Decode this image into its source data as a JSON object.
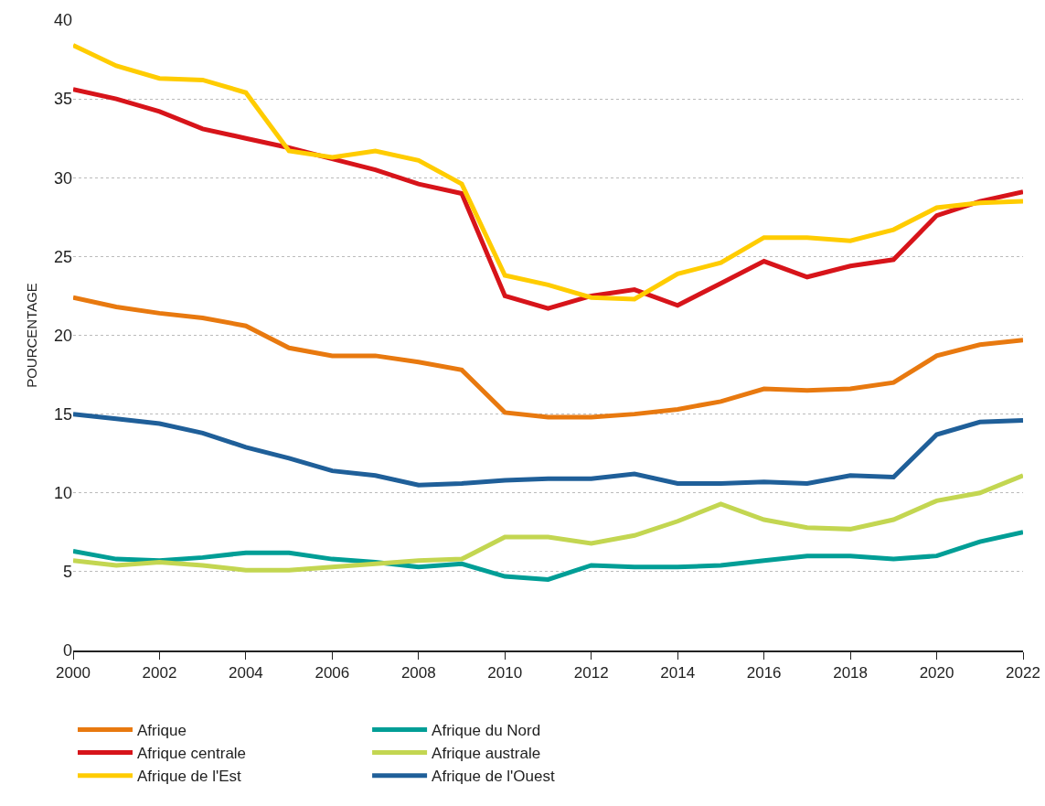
{
  "chart_data": {
    "type": "line",
    "ylabel": "POURCENTAGE",
    "x": [
      2000,
      2001,
      2002,
      2003,
      2004,
      2005,
      2006,
      2007,
      2008,
      2009,
      2010,
      2011,
      2012,
      2013,
      2014,
      2015,
      2016,
      2017,
      2018,
      2019,
      2020,
      2021,
      2022
    ],
    "xlim": [
      2000,
      2022
    ],
    "xticks": [
      2000,
      2002,
      2004,
      2006,
      2008,
      2010,
      2012,
      2014,
      2016,
      2018,
      2020,
      2022
    ],
    "ylim": [
      0,
      40
    ],
    "yticks": [
      0,
      5,
      10,
      15,
      20,
      25,
      30,
      35,
      40
    ],
    "grid": "y",
    "legend": "bottom",
    "marker": "none",
    "line_style": "solid",
    "series": [
      {
        "name": "Afrique",
        "color": "#e8790f",
        "values": [
          22.4,
          21.8,
          21.4,
          21.1,
          20.6,
          19.2,
          18.7,
          18.7,
          18.3,
          17.8,
          15.1,
          14.8,
          14.8,
          15.0,
          15.3,
          15.8,
          16.6,
          16.5,
          16.6,
          17.0,
          18.7,
          19.4,
          19.7
        ]
      },
      {
        "name": "Afrique centrale",
        "color": "#d7141a",
        "values": [
          35.6,
          35.0,
          34.2,
          33.1,
          32.5,
          31.9,
          31.2,
          30.5,
          29.6,
          29.0,
          22.5,
          21.7,
          22.5,
          22.9,
          21.9,
          23.3,
          24.7,
          23.7,
          24.4,
          24.8,
          27.6,
          28.5,
          29.1
        ]
      },
      {
        "name": "Afrique de l'Est",
        "color": "#ffcc00",
        "values": [
          38.4,
          37.1,
          36.3,
          36.2,
          35.4,
          31.7,
          31.3,
          31.7,
          31.1,
          29.6,
          23.8,
          23.2,
          22.4,
          22.3,
          23.9,
          24.6,
          26.2,
          26.2,
          26.0,
          26.7,
          28.1,
          28.4,
          28.5
        ]
      },
      {
        "name": "Afrique du Nord",
        "color": "#009e96",
        "values": [
          6.3,
          5.8,
          5.7,
          5.9,
          6.2,
          6.2,
          5.8,
          5.6,
          5.3,
          5.5,
          4.7,
          4.5,
          5.4,
          5.3,
          5.3,
          5.4,
          5.7,
          6.0,
          6.0,
          5.8,
          6.0,
          6.9,
          7.5
        ]
      },
      {
        "name": "Afrique australe",
        "color": "#c3d651",
        "values": [
          5.7,
          5.4,
          5.6,
          5.4,
          5.1,
          5.1,
          5.3,
          5.5,
          5.7,
          5.8,
          7.2,
          7.2,
          6.8,
          7.3,
          8.2,
          9.3,
          8.3,
          7.8,
          7.7,
          8.3,
          9.5,
          10.0,
          11.1
        ]
      },
      {
        "name": "Afrique de l'Ouest",
        "color": "#1f5f99",
        "values": [
          15.0,
          14.7,
          14.4,
          13.8,
          12.9,
          12.2,
          11.4,
          11.1,
          10.5,
          10.6,
          10.8,
          10.9,
          10.9,
          11.2,
          10.6,
          10.6,
          10.7,
          10.6,
          11.1,
          11.0,
          13.7,
          14.5,
          14.6
        ]
      }
    ]
  }
}
